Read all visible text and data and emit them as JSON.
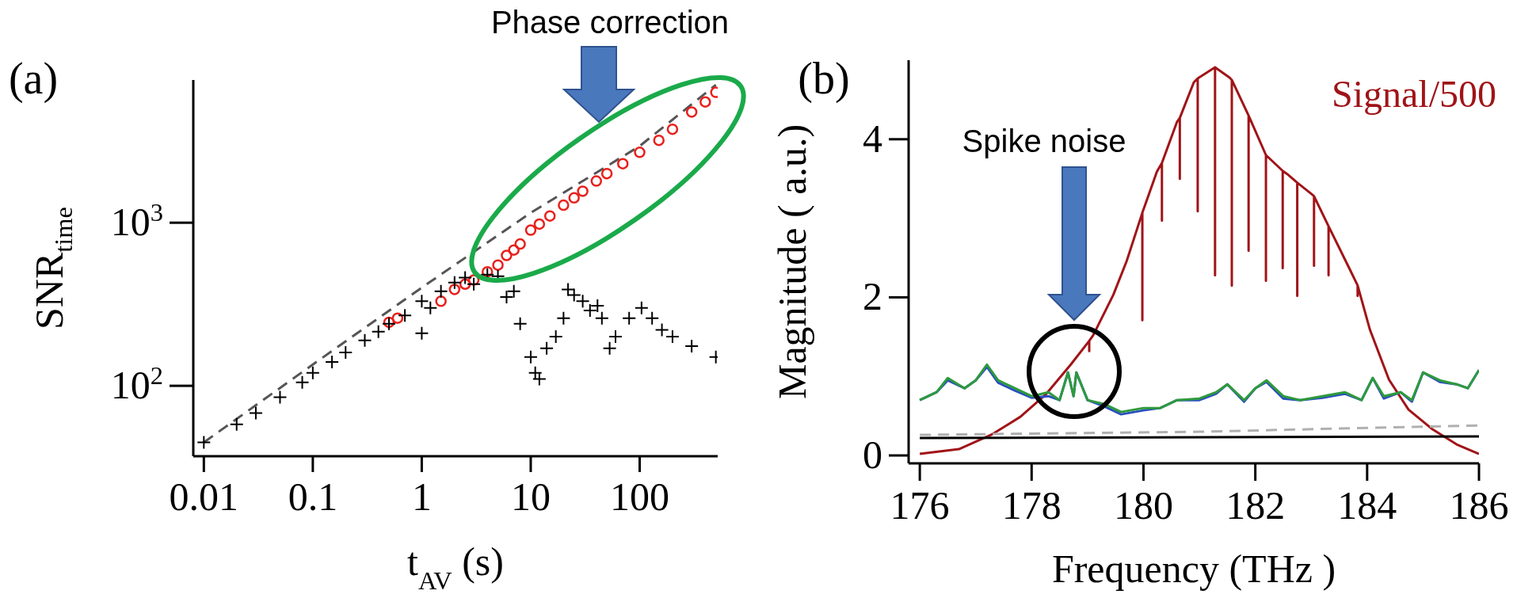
{
  "chart_data": [
    {
      "type": "scatter",
      "xlabel": "t$_{AV}$ (s)",
      "ylabel": "SNR$_{time}$",
      "log": "xy",
      "xlim": [
        0.008,
        520
      ],
      "ylim": [
        37,
        7500
      ],
      "xticks": [
        0.01,
        0.1,
        1,
        10,
        100
      ],
      "yticks": [
        {
          "value": 100,
          "label": "10$^{2}$"
        },
        {
          "value": 1000,
          "label": "10$^{3}$"
        }
      ],
      "annotations": [
        "(a)",
        "Phase correction"
      ],
      "series": [
        {
          "type": "line",
          "color": "#555555",
          "line_style": "dashed",
          "marker": "none",
          "x": [
            0.01,
            0.1,
            1,
            10,
            100,
            500
          ],
          "values": [
            45,
            135,
            400,
            1150,
            2950,
            7000
          ]
        },
        {
          "color": "#e8201c",
          "marker": "circle",
          "x": [
            0.5,
            0.6,
            1.5,
            2,
            2.5,
            3,
            4,
            5,
            6,
            7,
            8,
            10,
            12,
            15,
            20,
            25,
            30,
            40,
            50,
            70,
            100,
            150,
            200,
            300,
            400,
            500
          ],
          "values": [
            245,
            260,
            330,
            390,
            420,
            445,
            500,
            550,
            630,
            680,
            740,
            900,
            980,
            1100,
            1280,
            1420,
            1560,
            1800,
            2000,
            2300,
            2700,
            3200,
            3740,
            4770,
            5500,
            6300
          ]
        },
        {
          "color": "#000000",
          "marker": "cross",
          "x": [
            0.01,
            0.02,
            0.03,
            0.05,
            0.08,
            0.1,
            0.15,
            0.2,
            0.3,
            0.4,
            0.5,
            0.7,
            1,
            1,
            1.2,
            1.5,
            2,
            2.5,
            3,
            4,
            5,
            6,
            7,
            8,
            10,
            11,
            12,
            14,
            17,
            20,
            22,
            25,
            30,
            35,
            41,
            45,
            53,
            60,
            80,
            104,
            130,
            160,
            200,
            300,
            500
          ],
          "values": [
            45,
            58,
            68,
            85,
            105,
            120,
            140,
            160,
            190,
            215,
            240,
            270,
            330,
            210,
            300,
            380,
            430,
            460,
            420,
            480,
            470,
            350,
            380,
            240,
            150,
            120,
            110,
            170,
            200,
            260,
            390,
            360,
            330,
            290,
            310,
            260,
            170,
            200,
            260,
            300,
            260,
            220,
            200,
            175,
            150
          ]
        }
      ]
    },
    {
      "type": "line",
      "xlabel": "Frequency (THz )",
      "ylabel": "Magnitude ( a.u.)",
      "xlim": [
        175.8,
        186
      ],
      "ylim": [
        -0.1,
        5
      ],
      "xticks": [
        176,
        178,
        180,
        182,
        184,
        186
      ],
      "yticks": [
        0,
        2,
        4
      ],
      "marker": "none",
      "annotations": [
        "(b)",
        "Spike noise"
      ],
      "series": [
        {
          "name": "Signal/500",
          "color": "#a01418",
          "line_style": "solid",
          "x": [
            176,
            176.7,
            177.3,
            177.8,
            178.25,
            178.7,
            179.03,
            179.03,
            179.03,
            179.1,
            179.46,
            179.7,
            179.98,
            179.98,
            179.98,
            180.24,
            180.33,
            180.33,
            180.33,
            180.6,
            180.65,
            180.65,
            180.65,
            180.9,
            180.97,
            180.97,
            180.97,
            181.28,
            181.28,
            181.28,
            181.54,
            181.58,
            181.58,
            181.58,
            181.88,
            181.88,
            181.88,
            182.19,
            182.19,
            182.19,
            182.49,
            182.49,
            182.49,
            182.57,
            182.75,
            182.75,
            182.75,
            183,
            183.05,
            183.05,
            183.05,
            183.31,
            183.31,
            183.31,
            183.7,
            183.83,
            183.83,
            183.83,
            184.05,
            184.39,
            184.74,
            185.17,
            185.6,
            186
          ],
          "values": [
            0.02,
            0.08,
            0.27,
            0.49,
            0.77,
            1.15,
            1.45,
            1.32,
            1.45,
            1.52,
            2.03,
            2.46,
            3.07,
            1.71,
            3.07,
            3.59,
            3.7,
            2.97,
            3.7,
            4.22,
            4.27,
            3.5,
            4.27,
            4.72,
            4.77,
            3.09,
            4.77,
            4.91,
            2.28,
            4.91,
            4.78,
            4.75,
            2.15,
            4.75,
            4.3,
            2.59,
            4.3,
            3.8,
            2.21,
            3.8,
            3.6,
            2.37,
            3.6,
            3.56,
            3.45,
            2.02,
            3.45,
            3.31,
            3.28,
            2.4,
            3.28,
            2.9,
            2.28,
            2.9,
            2.34,
            2.15,
            2.02,
            2.15,
            1.59,
            0.96,
            0.58,
            0.33,
            0.14,
            0.02
          ]
        },
        {
          "color": "#2a4fc0",
          "line_style": "solid",
          "x": [
            176,
            176.3,
            176.5,
            176.8,
            177,
            177.2,
            177.4,
            177.7,
            178,
            178.3,
            178.5,
            178.65,
            178.75,
            178.8,
            179,
            179.3,
            179.6,
            180,
            180.3,
            180.6,
            181,
            181.3,
            181.5,
            181.8,
            182,
            182.2,
            182.5,
            182.8,
            183.2,
            183.6,
            183.9,
            184.1,
            184.3,
            184.6,
            184.8,
            185,
            185.3,
            185.6,
            185.8,
            186
          ],
          "values": [
            0.7,
            0.8,
            0.95,
            0.85,
            0.95,
            1.12,
            0.92,
            0.82,
            0.73,
            0.75,
            0.7,
            1.05,
            0.75,
            1.05,
            0.7,
            0.62,
            0.52,
            0.57,
            0.6,
            0.7,
            0.7,
            0.78,
            0.9,
            0.68,
            0.85,
            0.93,
            0.72,
            0.7,
            0.73,
            0.78,
            0.7,
            0.98,
            0.72,
            0.8,
            0.68,
            1.05,
            0.93,
            0.9,
            0.85,
            1.08
          ]
        },
        {
          "color": "#2e9a3c",
          "line_style": "solid",
          "x": [
            176,
            176.3,
            176.5,
            176.8,
            177,
            177.2,
            177.4,
            177.7,
            178,
            178.3,
            178.5,
            178.65,
            178.75,
            178.8,
            179,
            179.3,
            179.6,
            180,
            180.3,
            180.6,
            181,
            181.3,
            181.5,
            181.8,
            182,
            182.2,
            182.5,
            182.8,
            183.2,
            183.6,
            183.9,
            184.1,
            184.3,
            184.6,
            184.8,
            185,
            185.3,
            185.6,
            185.8,
            186
          ],
          "values": [
            0.7,
            0.8,
            0.98,
            0.85,
            0.95,
            1.15,
            0.95,
            0.85,
            0.75,
            0.8,
            0.7,
            1.05,
            0.75,
            1.05,
            0.7,
            0.65,
            0.55,
            0.6,
            0.6,
            0.7,
            0.72,
            0.8,
            0.9,
            0.7,
            0.85,
            0.95,
            0.75,
            0.7,
            0.75,
            0.8,
            0.7,
            0.98,
            0.75,
            0.8,
            0.7,
            1.05,
            0.95,
            0.9,
            0.85,
            1.08
          ]
        },
        {
          "color": "#b0b0b0",
          "line_style": "dashed",
          "x": [
            176,
            181,
            186
          ],
          "values": [
            0.26,
            0.3,
            0.38
          ]
        },
        {
          "color": "#000000",
          "line_style": "solid",
          "x": [
            176,
            186
          ],
          "values": [
            0.22,
            0.24
          ]
        }
      ]
    }
  ]
}
